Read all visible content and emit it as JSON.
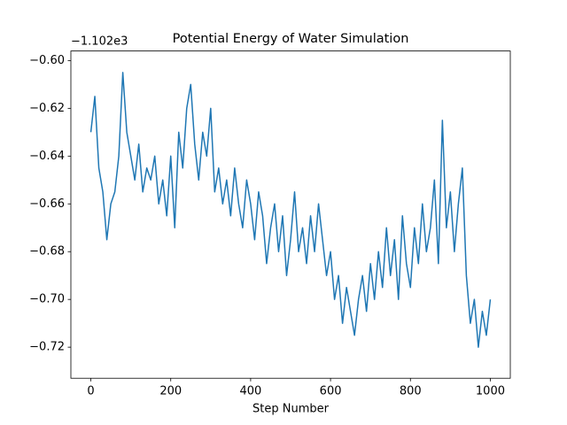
{
  "chart_data": {
    "type": "line",
    "title": "Potential Energy of Water Simulation",
    "xlabel": "Step Number",
    "y_offset_label": "−1.102e3",
    "xlim": [
      -50,
      1050
    ],
    "xticks": [
      0,
      200,
      400,
      600,
      800,
      1000
    ],
    "ylim": [
      -0.733,
      -0.596
    ],
    "yticks": [
      {
        "value": -0.6,
        "label": "−0.60"
      },
      {
        "value": -0.62,
        "label": "−0.62"
      },
      {
        "value": -0.64,
        "label": "−0.64"
      },
      {
        "value": -0.66,
        "label": "−0.66"
      },
      {
        "value": -0.68,
        "label": "−0.68"
      },
      {
        "value": -0.7,
        "label": "−0.70"
      },
      {
        "value": -0.72,
        "label": "−0.72"
      }
    ],
    "x": [
      0,
      10,
      20,
      30,
      40,
      50,
      60,
      70,
      80,
      90,
      100,
      110,
      120,
      130,
      140,
      150,
      160,
      170,
      180,
      190,
      200,
      210,
      220,
      230,
      240,
      250,
      260,
      270,
      280,
      290,
      300,
      310,
      320,
      330,
      340,
      350,
      360,
      370,
      380,
      390,
      400,
      410,
      420,
      430,
      440,
      450,
      460,
      470,
      480,
      490,
      500,
      510,
      520,
      530,
      540,
      550,
      560,
      570,
      580,
      590,
      600,
      610,
      620,
      630,
      640,
      650,
      660,
      670,
      680,
      690,
      700,
      710,
      720,
      730,
      740,
      750,
      760,
      770,
      780,
      790,
      800,
      810,
      820,
      830,
      840,
      850,
      860,
      870,
      880,
      890,
      900,
      910,
      920,
      930,
      940,
      950,
      960,
      970,
      980,
      990,
      1000
    ],
    "series": [
      {
        "color": "#1f77b4",
        "values": [
          -0.63,
          -0.615,
          -0.645,
          -0.655,
          -0.675,
          -0.66,
          -0.655,
          -0.64,
          -0.605,
          -0.63,
          -0.64,
          -0.65,
          -0.635,
          -0.655,
          -0.645,
          -0.65,
          -0.64,
          -0.66,
          -0.65,
          -0.665,
          -0.64,
          -0.67,
          -0.63,
          -0.645,
          -0.62,
          -0.61,
          -0.635,
          -0.65,
          -0.63,
          -0.64,
          -0.62,
          -0.655,
          -0.645,
          -0.66,
          -0.65,
          -0.665,
          -0.645,
          -0.66,
          -0.67,
          -0.65,
          -0.66,
          -0.675,
          -0.655,
          -0.665,
          -0.685,
          -0.67,
          -0.66,
          -0.68,
          -0.665,
          -0.69,
          -0.675,
          -0.655,
          -0.68,
          -0.67,
          -0.685,
          -0.665,
          -0.68,
          -0.66,
          -0.675,
          -0.69,
          -0.68,
          -0.7,
          -0.69,
          -0.71,
          -0.695,
          -0.705,
          -0.715,
          -0.7,
          -0.69,
          -0.705,
          -0.685,
          -0.7,
          -0.68,
          -0.695,
          -0.67,
          -0.69,
          -0.675,
          -0.7,
          -0.665,
          -0.685,
          -0.695,
          -0.67,
          -0.685,
          -0.66,
          -0.68,
          -0.67,
          -0.65,
          -0.685,
          -0.625,
          -0.67,
          -0.655,
          -0.68,
          -0.66,
          -0.645,
          -0.69,
          -0.71,
          -0.7,
          -0.72,
          -0.705,
          -0.715,
          -0.7
        ]
      }
    ]
  }
}
